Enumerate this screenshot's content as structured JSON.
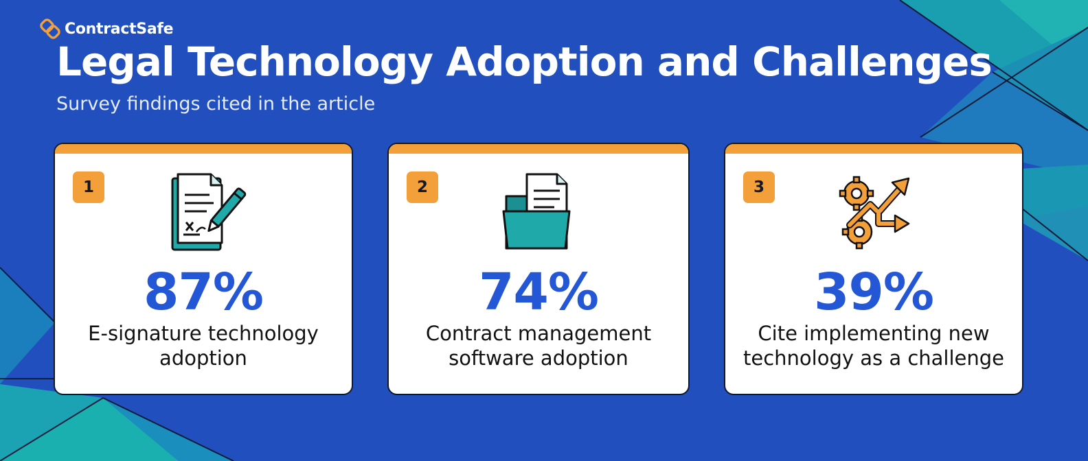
{
  "brand": {
    "name": "ContractSafe",
    "logo_icon": "interlocked-links-logo",
    "logo_color": "#f4a03a"
  },
  "header": {
    "title": "Legal Technology Adoption and Challenges",
    "subtitle": "Survey findings cited in the article"
  },
  "colors": {
    "background": "#2150be",
    "teal_accent": "#1aa8b0",
    "card_accent": "#f4a03a",
    "stat_blue": "#2457d6",
    "icon_teal": "#20a9a9"
  },
  "cards": [
    {
      "number": "1",
      "value": "87%",
      "label": "E-signature technology adoption",
      "icon": "signed-document-with-pen-icon"
    },
    {
      "number": "2",
      "value": "74%",
      "label": "Contract management software adoption",
      "icon": "document-in-folder-icon"
    },
    {
      "number": "3",
      "value": "39%",
      "label": "Cite implementing new technology as a challenge",
      "icon": "gears-with-arrows-icon"
    }
  ]
}
